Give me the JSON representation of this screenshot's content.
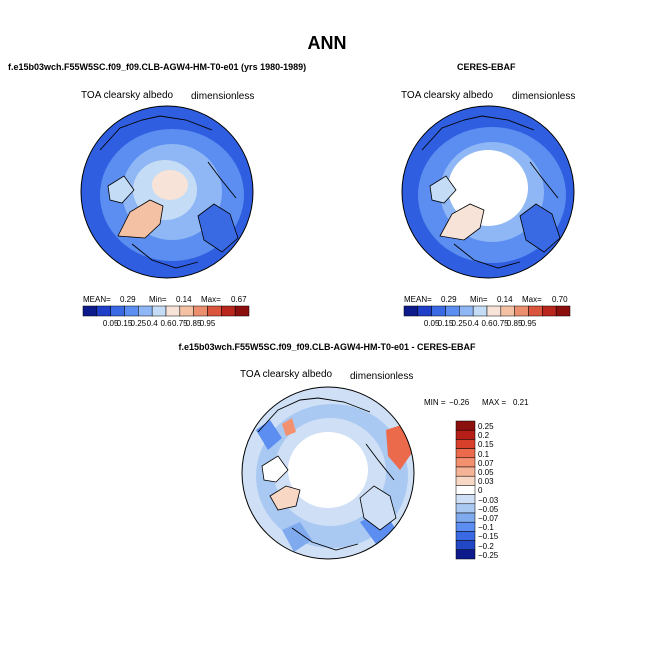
{
  "figure": {
    "season": "ANN"
  },
  "panels": {
    "model": {
      "case_title": "f.e15b03wch.F55W5SC.f09_f09.CLB-AGW4-HM-T0-e01 (yrs 1980-1989)",
      "variable": "TOA clearsky albedo",
      "units": "dimensionless",
      "mean_label": "MEAN=",
      "mean": "0.29",
      "min_label": "Min=",
      "min": "0.14",
      "max_label": "Max=",
      "max": "0.67"
    },
    "obs": {
      "case_title": "CERES-EBAF",
      "variable": "TOA clearsky albedo",
      "units": "dimensionless",
      "mean_label": "MEAN=",
      "mean": "0.29",
      "min_label": "Min=",
      "min": "0.14",
      "max_label": "Max=",
      "max": "0.70"
    },
    "diff": {
      "case_title": "f.e15b03wch.F55W5SC.f09_f09.CLB-AGW4-HM-T0-e01 - CERES-EBAF",
      "variable": "TOA clearsky albedo",
      "units": "dimensionless",
      "min_label": "MIN =",
      "min": "−0.26",
      "max_label": "MAX =",
      "max": "0.21"
    }
  },
  "colorbar_abs": {
    "ticks": [
      "0.05",
      "0.15",
      "0.25",
      "0.4",
      "0.6",
      "0.75",
      "0.85",
      "0.95"
    ],
    "colors": [
      "#0c1a8c",
      "#1f3fc9",
      "#3a6ae3",
      "#5b8ef0",
      "#8fb6f5",
      "#c5dcf6",
      "#f7e3d7",
      "#f5c1a5",
      "#ec8f6e",
      "#d9563d",
      "#b8261d",
      "#8a0f0d"
    ]
  },
  "colorbar_diff": {
    "ticks": [
      "0.25",
      "0.2",
      "0.15",
      "0.1",
      "0.07",
      "0.05",
      "0.03",
      "0",
      "−0.03",
      "−0.05",
      "−0.07",
      "−0.1",
      "−0.15",
      "−0.2",
      "−0.25"
    ],
    "colors": [
      "#8a0f0d",
      "#b51f17",
      "#d9402b",
      "#ec6a4c",
      "#f3906f",
      "#f6b497",
      "#f8d7c4",
      "#ffffff",
      "#cfe0f6",
      "#a9c8f2",
      "#80aaee",
      "#5b8ef0",
      "#3a6ae3",
      "#2147c4",
      "#0c1a8c"
    ]
  }
}
